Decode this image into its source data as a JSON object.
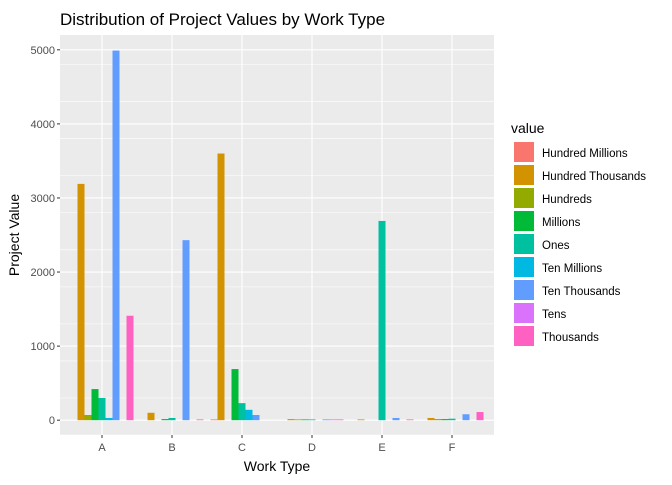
{
  "chart_data": {
    "type": "bar",
    "title": "Distribution of Project Values by Work Type",
    "xlabel": "Work Type",
    "ylabel": "Project Value",
    "ylim": [
      -200,
      5200
    ],
    "yticks": [
      0,
      1000,
      2000,
      3000,
      4000,
      5000
    ],
    "categories": [
      "A",
      "B",
      "C",
      "D",
      "E",
      "F"
    ],
    "legend": {
      "title": "value",
      "position": "right"
    },
    "grid": true,
    "series": [
      {
        "name": "Hundred Millions",
        "color": "#F8766D",
        "values": [
          0,
          0,
          10,
          0,
          0,
          0
        ]
      },
      {
        "name": "Hundred Thousands",
        "color": "#D39200",
        "values": [
          3190,
          100,
          3600,
          15,
          10,
          30
        ]
      },
      {
        "name": "Hundreds",
        "color": "#93AA00",
        "values": [
          70,
          0,
          0,
          10,
          0,
          15
        ]
      },
      {
        "name": "Millions",
        "color": "#00BA38",
        "values": [
          420,
          15,
          690,
          10,
          0,
          15
        ]
      },
      {
        "name": "Ones",
        "color": "#00C19F",
        "values": [
          300,
          30,
          230,
          10,
          2690,
          20
        ]
      },
      {
        "name": "Ten Millions",
        "color": "#00B9E3",
        "values": [
          30,
          0,
          140,
          0,
          0,
          0
        ]
      },
      {
        "name": "Ten Thousands",
        "color": "#619CFF",
        "values": [
          4990,
          2430,
          70,
          10,
          30,
          80
        ]
      },
      {
        "name": "Tens",
        "color": "#DB72FB",
        "values": [
          0,
          0,
          0,
          10,
          0,
          0
        ]
      },
      {
        "name": "Thousands",
        "color": "#FF61C3",
        "values": [
          1410,
          10,
          0,
          10,
          10,
          110
        ]
      }
    ]
  }
}
